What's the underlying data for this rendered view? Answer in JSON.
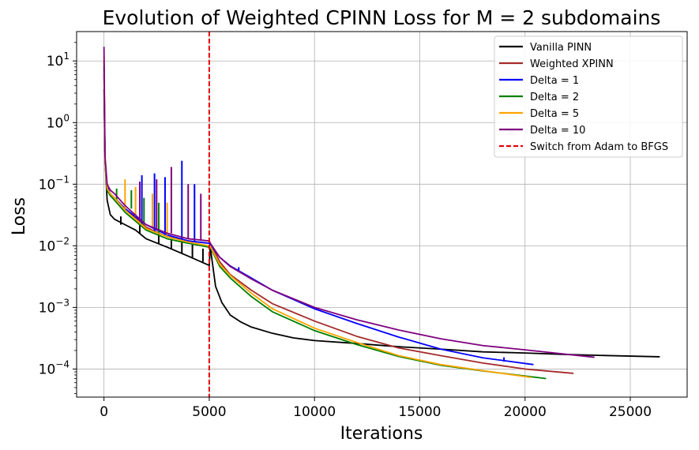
{
  "chart_data": {
    "type": "line",
    "title": "Evolution of Weighted CPINN Loss for M = 2 subdomains",
    "xlabel": "Iterations",
    "ylabel": "Loss",
    "yscale": "log",
    "xlim": [
      -1300,
      27700
    ],
    "ylim": [
      3.5e-05,
      30
    ],
    "grid": true,
    "legend_position": "top-right",
    "x_ticks": [
      0,
      5000,
      10000,
      15000,
      20000,
      25000
    ],
    "x_tick_labels": [
      "0",
      "5000",
      "10000",
      "15000",
      "20000",
      "25000"
    ],
    "y_ticks": [
      0.0001,
      0.001,
      0.01,
      0.1,
      1,
      10
    ],
    "y_tick_labels": [
      {
        "base": "10",
        "exp": "−4"
      },
      {
        "base": "10",
        "exp": "−3"
      },
      {
        "base": "10",
        "exp": "−2"
      },
      {
        "base": "10",
        "exp": "−1"
      },
      {
        "base": "10",
        "exp": "0"
      },
      {
        "base": "10",
        "exp": "1"
      }
    ],
    "annotations": [
      {
        "type": "vline",
        "x": 5000,
        "label": "Switch from Adam to BFGS",
        "color": "#e8000b",
        "style": "dashed"
      }
    ],
    "series": [
      {
        "name": "Vanilla PINN",
        "color": "#000000",
        "x": [
          0,
          50,
          150,
          300,
          500,
          1000,
          1500,
          2000,
          3000,
          4000,
          5000,
          5050,
          5300,
          5600,
          6000,
          6500,
          7000,
          8000,
          9000,
          10000,
          12000,
          14000,
          16000,
          18000,
          20000,
          22000,
          24000,
          26400
        ],
        "y": [
          3.5,
          0.25,
          0.055,
          0.032,
          0.027,
          0.022,
          0.018,
          0.013,
          0.0095,
          0.0068,
          0.0048,
          0.0095,
          0.0022,
          0.0012,
          0.00075,
          0.00058,
          0.00048,
          0.00038,
          0.00032,
          0.00029,
          0.00026,
          0.00023,
          0.00021,
          0.00019,
          0.000182,
          0.000172,
          0.000165,
          0.000158
        ],
        "spikes": [
          [
            800,
            0.022,
            0.03
          ],
          [
            1700,
            0.016,
            0.022
          ],
          [
            2600,
            0.011,
            0.016
          ],
          [
            3200,
            0.009,
            0.013
          ],
          [
            3700,
            0.0075,
            0.012
          ],
          [
            4200,
            0.0065,
            0.011
          ],
          [
            4700,
            0.0055,
            0.009
          ]
        ]
      },
      {
        "name": "Weighted XPINN",
        "color": "#a52a2a",
        "x": [
          0,
          50,
          150,
          300,
          500,
          1000,
          2000,
          3000,
          4000,
          5000,
          5050,
          5500,
          6000,
          7000,
          8000,
          10000,
          12000,
          14000,
          16000,
          18000,
          20000,
          22300
        ],
        "y": [
          6,
          0.25,
          0.09,
          0.07,
          0.06,
          0.04,
          0.02,
          0.014,
          0.012,
          0.011,
          0.011,
          0.0055,
          0.0034,
          0.0019,
          0.00115,
          0.0006,
          0.00034,
          0.00022,
          0.000165,
          0.000125,
          0.0001,
          8.5e-05
        ],
        "spikes": []
      },
      {
        "name": "Delta = 1",
        "color": "#0000ff",
        "x": [
          0,
          50,
          150,
          300,
          500,
          1000,
          2000,
          3000,
          4000,
          5000,
          5050,
          5500,
          6000,
          7000,
          8000,
          10000,
          12000,
          14000,
          16000,
          18000,
          20400
        ],
        "y": [
          8,
          0.25,
          0.09,
          0.07,
          0.06,
          0.04,
          0.022,
          0.015,
          0.012,
          0.011,
          0.0105,
          0.0065,
          0.0047,
          0.003,
          0.0019,
          0.00095,
          0.00055,
          0.00033,
          0.00021,
          0.000152,
          0.000118
        ],
        "spikes": [
          [
            1800,
            0.022,
            0.14
          ],
          [
            2400,
            0.017,
            0.15
          ],
          [
            2900,
            0.015,
            0.13
          ],
          [
            3700,
            0.013,
            0.24
          ],
          [
            4300,
            0.012,
            0.1
          ],
          [
            6400,
            0.0038,
            0.0045
          ],
          [
            19000,
            0.000132,
            0.000155
          ]
        ]
      },
      {
        "name": "Delta = 2",
        "color": "#008000",
        "x": [
          0,
          50,
          150,
          300,
          500,
          1000,
          2000,
          3000,
          4000,
          5000,
          5050,
          5500,
          6000,
          7000,
          8000,
          10000,
          12000,
          14000,
          16000,
          18000,
          21000
        ],
        "y": [
          10,
          0.22,
          0.08,
          0.065,
          0.055,
          0.035,
          0.018,
          0.013,
          0.011,
          0.0095,
          0.0095,
          0.0046,
          0.003,
          0.0015,
          0.00085,
          0.00042,
          0.00025,
          0.00016,
          0.000115,
          9.3e-05,
          7e-05
        ],
        "spikes": [
          [
            600,
            0.055,
            0.085
          ],
          [
            1300,
            0.04,
            0.08
          ],
          [
            1900,
            0.022,
            0.06
          ],
          [
            2600,
            0.016,
            0.05
          ]
        ]
      },
      {
        "name": "Delta = 5",
        "color": "#ffa500",
        "x": [
          0,
          50,
          150,
          300,
          500,
          1000,
          2000,
          3000,
          4000,
          5000,
          5050,
          5500,
          6000,
          7000,
          8000,
          10000,
          12000,
          14000,
          16000,
          18000,
          20300
        ],
        "y": [
          12,
          0.24,
          0.085,
          0.07,
          0.06,
          0.038,
          0.019,
          0.014,
          0.0115,
          0.01,
          0.0098,
          0.005,
          0.0033,
          0.0017,
          0.00095,
          0.00046,
          0.00027,
          0.000165,
          0.000118,
          9.4e-05,
          7.3e-05
        ],
        "spikes": [
          [
            1000,
            0.04,
            0.12
          ],
          [
            1500,
            0.03,
            0.09
          ],
          [
            2300,
            0.02,
            0.07
          ],
          [
            3000,
            0.015,
            0.05
          ]
        ]
      },
      {
        "name": "Delta = 10",
        "color": "#800080",
        "x": [
          0,
          50,
          150,
          300,
          500,
          1000,
          2000,
          3000,
          4000,
          5000,
          5050,
          5500,
          6000,
          7000,
          8000,
          10000,
          12000,
          14000,
          16000,
          18000,
          20000,
          23300
        ],
        "y": [
          17,
          0.28,
          0.1,
          0.08,
          0.07,
          0.045,
          0.022,
          0.016,
          0.013,
          0.012,
          0.011,
          0.0065,
          0.0046,
          0.0029,
          0.0019,
          0.001,
          0.00063,
          0.00043,
          0.00031,
          0.00024,
          0.000205,
          0.000155
        ],
        "spikes": [
          [
            1700,
            0.025,
            0.11
          ],
          [
            2500,
            0.019,
            0.12
          ],
          [
            3200,
            0.016,
            0.19
          ],
          [
            4000,
            0.013,
            0.1
          ],
          [
            4600,
            0.012,
            0.07
          ]
        ]
      }
    ]
  }
}
